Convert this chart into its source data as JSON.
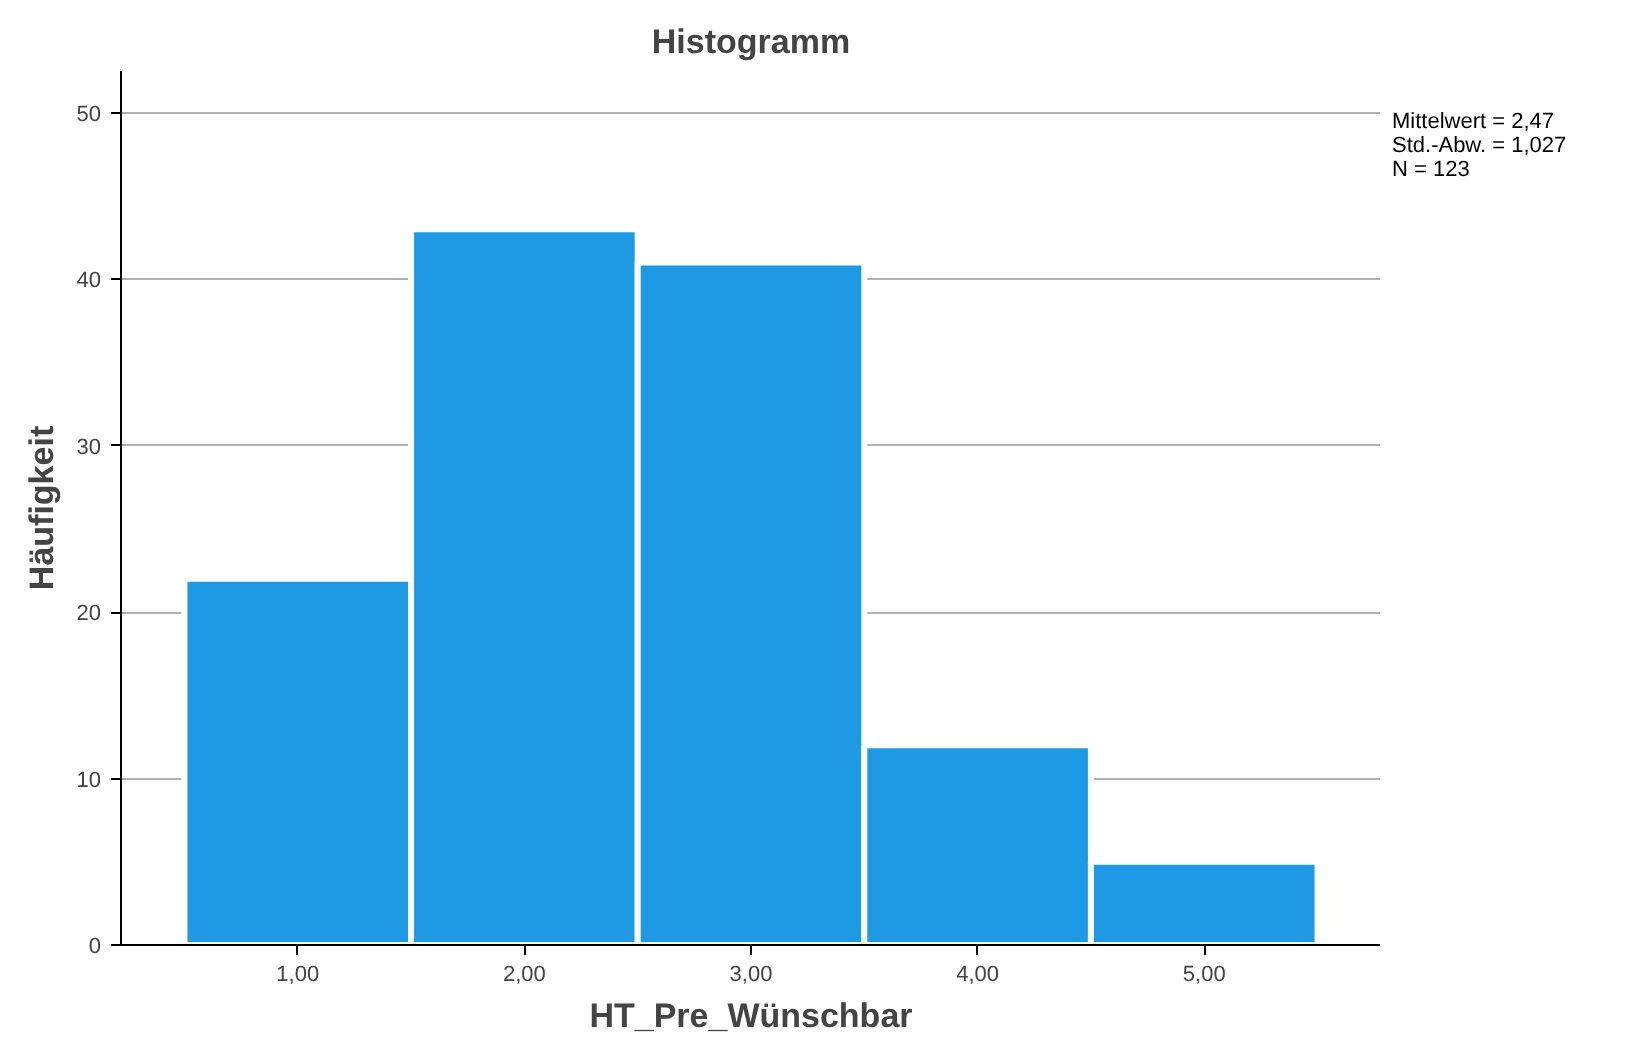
{
  "chart_data": {
    "type": "histogram",
    "title": "Histogramm",
    "xlabel": "HT_Pre_Wünschbar",
    "ylabel": "Häufigkeit",
    "bins": [
      0.5,
      1.5,
      2.5,
      3.5,
      4.5,
      5.5
    ],
    "values": [
      22,
      43,
      41,
      12,
      5
    ],
    "color": "#1e9ae5",
    "xlim": [
      0.22,
      5.78
    ],
    "ylim": [
      0,
      52.5
    ],
    "xticks": [
      {
        "value": 1,
        "label": "1,00"
      },
      {
        "value": 2,
        "label": "2,00"
      },
      {
        "value": 3,
        "label": "3,00"
      },
      {
        "value": 4,
        "label": "4,00"
      },
      {
        "value": 5,
        "label": "5,00"
      }
    ],
    "yticks": [
      0,
      10,
      20,
      30,
      40,
      50
    ],
    "grid": "y",
    "annotations": [
      "Mittelwert = 2,47",
      "Std.-Abw. = 1,027",
      "N = 123"
    ]
  }
}
